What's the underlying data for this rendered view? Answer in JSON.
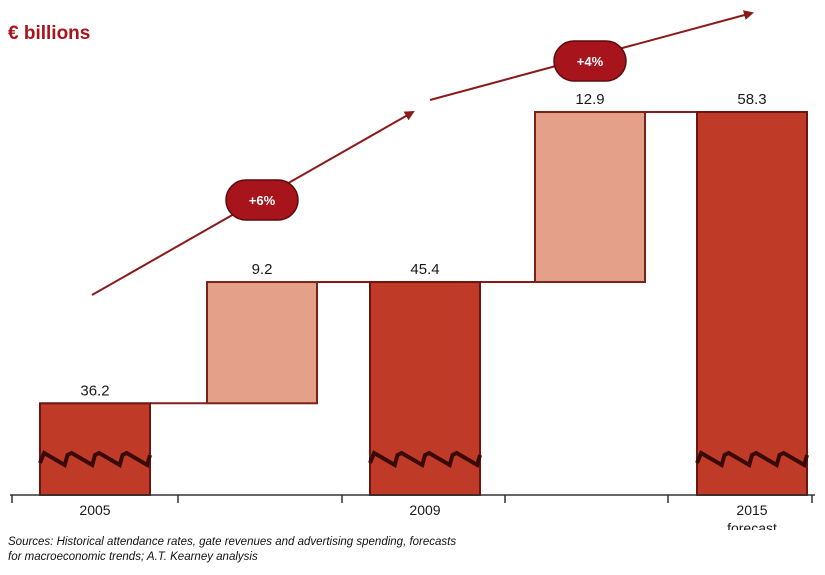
{
  "colors": {
    "dark_bar": "#c03a28",
    "dark_bar_border": "#6e1410",
    "light_bar": "#e5a08a",
    "light_bar_border": "#7a2418",
    "arrow": "#8b1a1a",
    "badge": "#a8141c",
    "unit_text": "#a8141c",
    "connector": "#8b1a1a"
  },
  "chart_data": {
    "type": "waterfall",
    "unit_label": "€ billions",
    "bars": [
      {
        "kind": "total",
        "start": 0,
        "end": 36.2,
        "label": "36.2",
        "x_label": "2005",
        "x_sublabel": ""
      },
      {
        "kind": "increment",
        "start": 36.2,
        "end": 45.4,
        "label": "9.2",
        "x_label": "",
        "x_sublabel": ""
      },
      {
        "kind": "total",
        "start": 0,
        "end": 45.4,
        "label": "45.4",
        "x_label": "2009",
        "x_sublabel": ""
      },
      {
        "kind": "increment",
        "start": 45.4,
        "end": 58.3,
        "label": "12.9",
        "x_label": "",
        "x_sublabel": ""
      },
      {
        "kind": "total",
        "start": 0,
        "end": 58.3,
        "label": "58.3",
        "x_label": "2015",
        "x_sublabel": "forecast"
      }
    ],
    "growth_annotations": [
      {
        "label": "+6%",
        "from_bar": 0,
        "to_bar": 2
      },
      {
        "label": "+4%",
        "from_bar": 2,
        "to_bar": 4
      }
    ],
    "axis_break": true
  },
  "source_note": {
    "line1": "Sources: Historical attendance rates, gate revenues and advertising spending, forecasts",
    "line2": "for macroeconomic trends; A.T. Kearney analysis"
  }
}
